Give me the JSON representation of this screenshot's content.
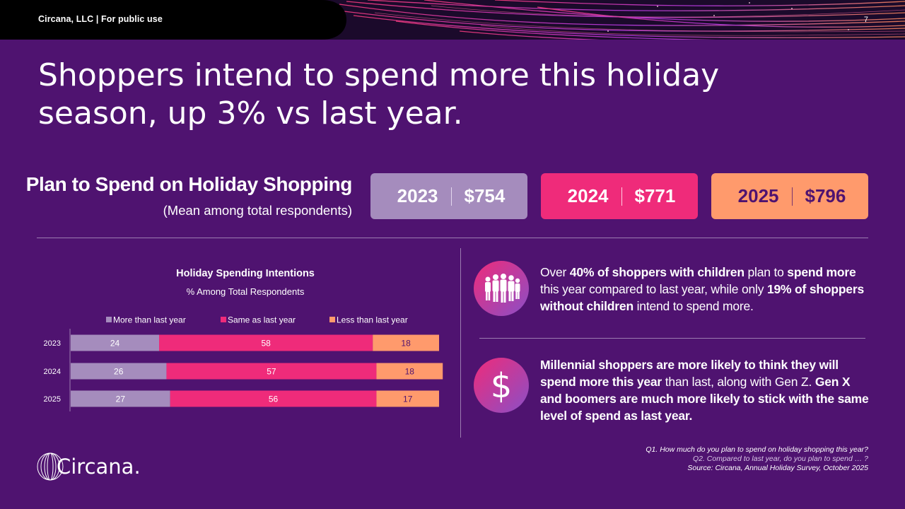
{
  "header": {
    "label": "Circana, LLC |  For public use",
    "page_number": "7"
  },
  "headline": {
    "line1": "Shoppers intend to spend more this holiday",
    "line2": "season, up 3% vs last year."
  },
  "spend_section": {
    "title": "Plan to Spend on Holiday Shopping",
    "subtitle": "(Mean among total respondents)",
    "boxes": [
      {
        "year": "2023",
        "amount": "$754",
        "bg": "#a58cbd",
        "text_color": "#ffffff",
        "divider": "#e3d7ee"
      },
      {
        "year": "2024",
        "amount": "$771",
        "bg": "#ef2b7a",
        "text_color": "#ffffff",
        "divider": "#ffd1e4"
      },
      {
        "year": "2025",
        "amount": "$796",
        "bg": "#ff9a6c",
        "text_color": "#4f1370",
        "divider": "#7a3570"
      }
    ]
  },
  "chart_data": {
    "type": "bar",
    "orientation": "horizontal",
    "stacked": true,
    "title": "Holiday Spending Intentions",
    "subtitle": "% Among Total Respondents",
    "categories": [
      "2023",
      "2024",
      "2025"
    ],
    "series": [
      {
        "name": "More than last year",
        "values": [
          24,
          26,
          27
        ],
        "color": "#a58cbd",
        "label_color": "#ffffff"
      },
      {
        "name": "Same as last year",
        "values": [
          58,
          57,
          56
        ],
        "color": "#ef2b7a",
        "label_color": "#ffffff"
      },
      {
        "name": "Less than last year",
        "values": [
          18,
          18,
          17
        ],
        "color": "#ff9a6c",
        "label_color": "#4f1370"
      }
    ],
    "xlim": [
      0,
      100
    ],
    "legend_position": "top",
    "grid": false
  },
  "insights": [
    {
      "icon": "people-silhouettes-icon",
      "parts": [
        {
          "t": "Over ",
          "b": false
        },
        {
          "t": "40% of shoppers with children",
          "b": true
        },
        {
          "t": " plan to ",
          "b": false
        },
        {
          "t": "spend more",
          "b": true
        },
        {
          "t": " this year compared to last year, while only ",
          "b": false
        },
        {
          "t": "19% of shoppers without children",
          "b": true
        },
        {
          "t": " intend to spend more.",
          "b": false
        }
      ]
    },
    {
      "icon": "dollar-sign-icon",
      "parts": [
        {
          "t": "Millennial shoppers are more likely to think they will spend more this year",
          "b": true
        },
        {
          "t": " than last, along with Gen Z. ",
          "b": false
        },
        {
          "t": "Gen X and boomers are much more likely to stick with the same level of spend as last year.",
          "b": true
        }
      ]
    }
  ],
  "logo": {
    "text": "Circana."
  },
  "footnotes": {
    "q1": "Q1. How much do you plan to spend on holiday shopping this year?",
    "q2": "Q2. Compared to last year, do you plan to spend … ?",
    "source": "Source: Circana, Annual Holiday Survey, October 2025"
  }
}
